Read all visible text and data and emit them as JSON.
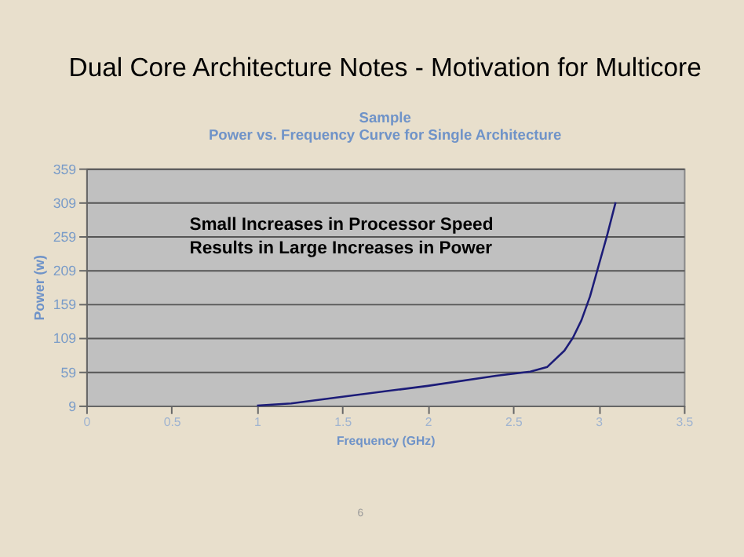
{
  "chart_data": {
    "type": "line",
    "title": "Dual Core Architecture Notes - Motivation for Multicore",
    "subtitle": "Sample\nPower vs. Frequency Curve for Single Architecture",
    "xlabel": "Frequency  (GHz)",
    "ylabel": "Power (w)",
    "x": [
      1,
      1.2,
      1.5,
      2,
      2.4,
      2.6,
      2.7,
      2.8,
      2.85,
      2.9,
      2.95,
      3.0,
      3.05,
      3.1
    ],
    "series": [
      {
        "color": "#1c1c78",
        "values": [
          9,
          12,
          22,
          38,
          53,
          59,
          66,
          90,
          109,
          135,
          170,
          215,
          260,
          309
        ]
      }
    ],
    "xlim": [
      0,
      3.5
    ],
    "xticks": [
      0,
      0.5,
      1,
      1.5,
      2,
      2.5,
      3,
      3.5
    ],
    "ylim": [
      9,
      359
    ],
    "yticks": [
      9,
      59,
      109,
      159,
      209,
      259,
      309,
      359
    ],
    "grid": "y",
    "marker": "none",
    "line_style": "solid",
    "annotations": [
      "Small Increases in Processor Speed\nResults in Large Increases in Power",
      "6"
    ]
  }
}
